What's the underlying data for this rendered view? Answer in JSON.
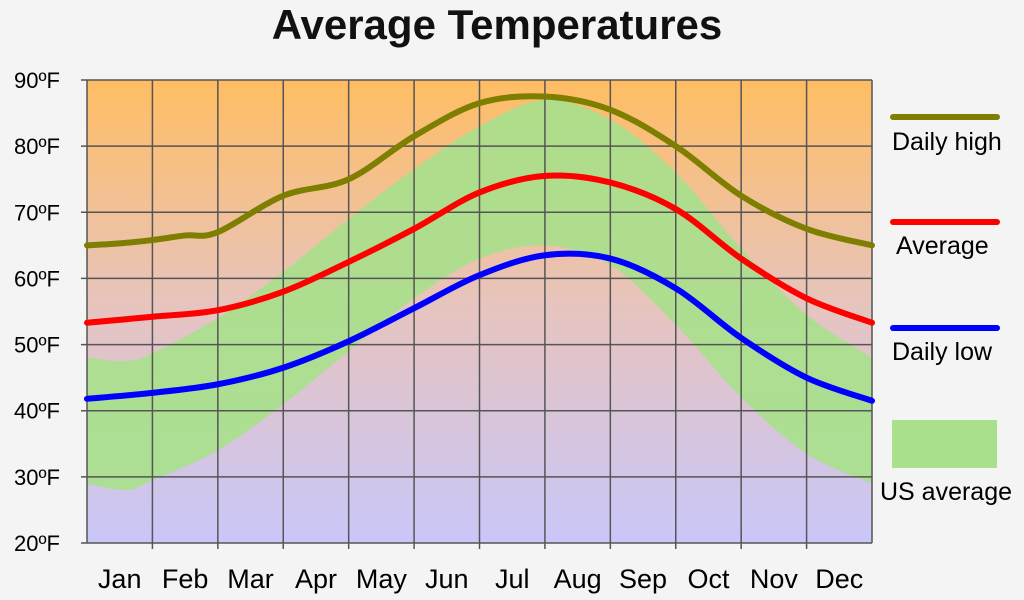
{
  "chart_data": {
    "type": "line",
    "title": "Average Temperatures",
    "categories": [
      "Jan",
      "Feb",
      "Mar",
      "Apr",
      "May",
      "Jun",
      "Jul",
      "Aug",
      "Sep",
      "Oct",
      "Nov",
      "Dec"
    ],
    "y_ticks": [
      "20ºF",
      "30ºF",
      "40ºF",
      "50ºF",
      "60ºF",
      "70ºF",
      "80ºF",
      "90ºF"
    ],
    "ylim": [
      20,
      90
    ],
    "grid": true,
    "legend_position": "right",
    "series": [
      {
        "name": "Daily high",
        "color": "#7e7e00",
        "points": [
          [
            0,
            65
          ],
          [
            0.5,
            65.3
          ],
          [
            1,
            65.8
          ],
          [
            1.5,
            66.5
          ],
          [
            2,
            67
          ],
          [
            3,
            72.5
          ],
          [
            4,
            75
          ],
          [
            5,
            81.5
          ],
          [
            6,
            86.5
          ],
          [
            7,
            87.5
          ],
          [
            8,
            85.5
          ],
          [
            9,
            80
          ],
          [
            10,
            72.5
          ],
          [
            11,
            67.5
          ],
          [
            12,
            65
          ]
        ]
      },
      {
        "name": "Average",
        "color": "#ff0000",
        "points": [
          [
            0,
            53.3
          ],
          [
            1,
            54.2
          ],
          [
            2,
            55.2
          ],
          [
            3,
            58
          ],
          [
            4,
            62.5
          ],
          [
            5,
            67.5
          ],
          [
            6,
            73
          ],
          [
            7,
            75.5
          ],
          [
            8,
            74.5
          ],
          [
            9,
            70.5
          ],
          [
            10,
            63
          ],
          [
            11,
            57
          ],
          [
            12,
            53.3
          ]
        ]
      },
      {
        "name": "Daily low",
        "color": "#0000ff",
        "points": [
          [
            0,
            41.8
          ],
          [
            1,
            42.7
          ],
          [
            2,
            44
          ],
          [
            3,
            46.5
          ],
          [
            4,
            50.5
          ],
          [
            5,
            55.5
          ],
          [
            6,
            60.5
          ],
          [
            7,
            63.5
          ],
          [
            8,
            63
          ],
          [
            9,
            58.5
          ],
          [
            10,
            51
          ],
          [
            11,
            45
          ],
          [
            12,
            41.5
          ]
        ]
      },
      {
        "name": "US average",
        "color": "#a8e08c",
        "type": "area",
        "upper": [
          [
            0,
            48
          ],
          [
            0.6,
            47.5
          ],
          [
            1,
            48.7
          ],
          [
            2,
            54
          ],
          [
            3,
            61
          ],
          [
            4,
            69
          ],
          [
            5,
            76.5
          ],
          [
            6,
            83
          ],
          [
            7,
            87
          ],
          [
            8,
            84
          ],
          [
            9,
            76
          ],
          [
            10,
            64.5
          ],
          [
            11,
            54.5
          ],
          [
            12,
            48
          ]
        ],
        "lower": [
          [
            0,
            29
          ],
          [
            0.6,
            28
          ],
          [
            1,
            29.5
          ],
          [
            2,
            34
          ],
          [
            3,
            41
          ],
          [
            4,
            49
          ],
          [
            5,
            57
          ],
          [
            6,
            63
          ],
          [
            7,
            65
          ],
          [
            8,
            62
          ],
          [
            9,
            53
          ],
          [
            10,
            42
          ],
          [
            11,
            33.5
          ],
          [
            12,
            29
          ]
        ]
      }
    ]
  },
  "colors": {
    "background_top": "#ffbd63",
    "background_mid": "#e6c4c0",
    "background_bottom": "#c9c6f8",
    "grid": "#555555"
  }
}
